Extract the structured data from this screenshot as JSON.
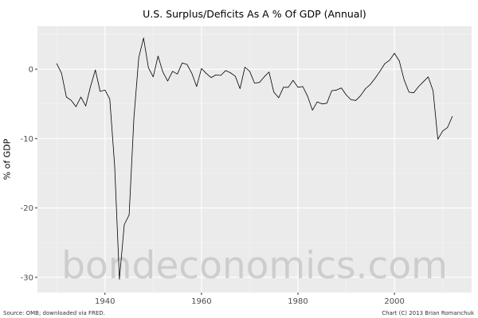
{
  "chart_data": {
    "type": "line",
    "title": "U.S. Surplus/Deficits As A % Of GDP (Annual)",
    "xlabel": "",
    "ylabel": "% of GDP",
    "source_note": "Source: OMB; downloaded via FRED.",
    "credit": "Chart (C) 2013 Brian Romanchuk",
    "watermark": "bondeconomics.com",
    "x": [
      1930,
      1931,
      1932,
      1933,
      1934,
      1935,
      1936,
      1937,
      1938,
      1939,
      1940,
      1941,
      1942,
      1943,
      1944,
      1945,
      1946,
      1947,
      1948,
      1949,
      1950,
      1951,
      1952,
      1953,
      1954,
      1955,
      1956,
      1957,
      1958,
      1959,
      1960,
      1961,
      1962,
      1963,
      1964,
      1965,
      1966,
      1967,
      1968,
      1969,
      1970,
      1971,
      1972,
      1973,
      1974,
      1975,
      1976,
      1977,
      1978,
      1979,
      1980,
      1981,
      1982,
      1983,
      1984,
      1985,
      1986,
      1987,
      1988,
      1989,
      1990,
      1991,
      1992,
      1993,
      1994,
      1995,
      1996,
      1997,
      1998,
      1999,
      2000,
      2001,
      2002,
      2003,
      2004,
      2005,
      2006,
      2007,
      2008,
      2009,
      2010,
      2011,
      2012
    ],
    "values": [
      0.8,
      -0.6,
      -4.0,
      -4.5,
      -5.4,
      -4.0,
      -5.3,
      -2.5,
      -0.1,
      -3.2,
      -3.0,
      -4.3,
      -13.9,
      -30.3,
      -22.4,
      -21.0,
      -7.0,
      1.7,
      4.5,
      0.2,
      -1.1,
      1.9,
      -0.4,
      -1.7,
      -0.3,
      -0.7,
      0.9,
      0.7,
      -0.6,
      -2.5,
      0.1,
      -0.6,
      -1.2,
      -0.8,
      -0.9,
      -0.2,
      -0.5,
      -1.0,
      -2.8,
      0.3,
      -0.3,
      -2.0,
      -1.9,
      -1.1,
      -0.4,
      -3.3,
      -4.1,
      -2.6,
      -2.6,
      -1.6,
      -2.6,
      -2.5,
      -3.9,
      -5.9,
      -4.7,
      -5.0,
      -4.9,
      -3.1,
      -3.0,
      -2.7,
      -3.7,
      -4.4,
      -4.5,
      -3.8,
      -2.8,
      -2.2,
      -1.3,
      -0.3,
      0.8,
      1.3,
      2.3,
      1.2,
      -1.5,
      -3.3,
      -3.4,
      -2.5,
      -1.8,
      -1.1,
      -3.1,
      -10.1,
      -8.9,
      -8.4,
      -6.8
    ],
    "xlim": [
      1926,
      2016
    ],
    "ylim": [
      -32.2,
      6.2
    ],
    "x_ticks": [
      1940,
      1960,
      1980,
      2000
    ],
    "y_ticks": [
      0,
      -10,
      -20,
      -30
    ],
    "x_minor": [
      1930,
      1950,
      1970,
      1990,
      2010
    ],
    "y_minor": [
      5,
      -5,
      -15,
      -25
    ],
    "grid": true,
    "legend": "none",
    "colors": {
      "panel": "#ebebeb",
      "grid_major": "#ffffff",
      "grid_minor": "#f5f5f5",
      "line": "#000000",
      "tick_text": "#4d4d4d",
      "tick_mark": "#333333",
      "watermark": "#c6c6c6"
    }
  }
}
